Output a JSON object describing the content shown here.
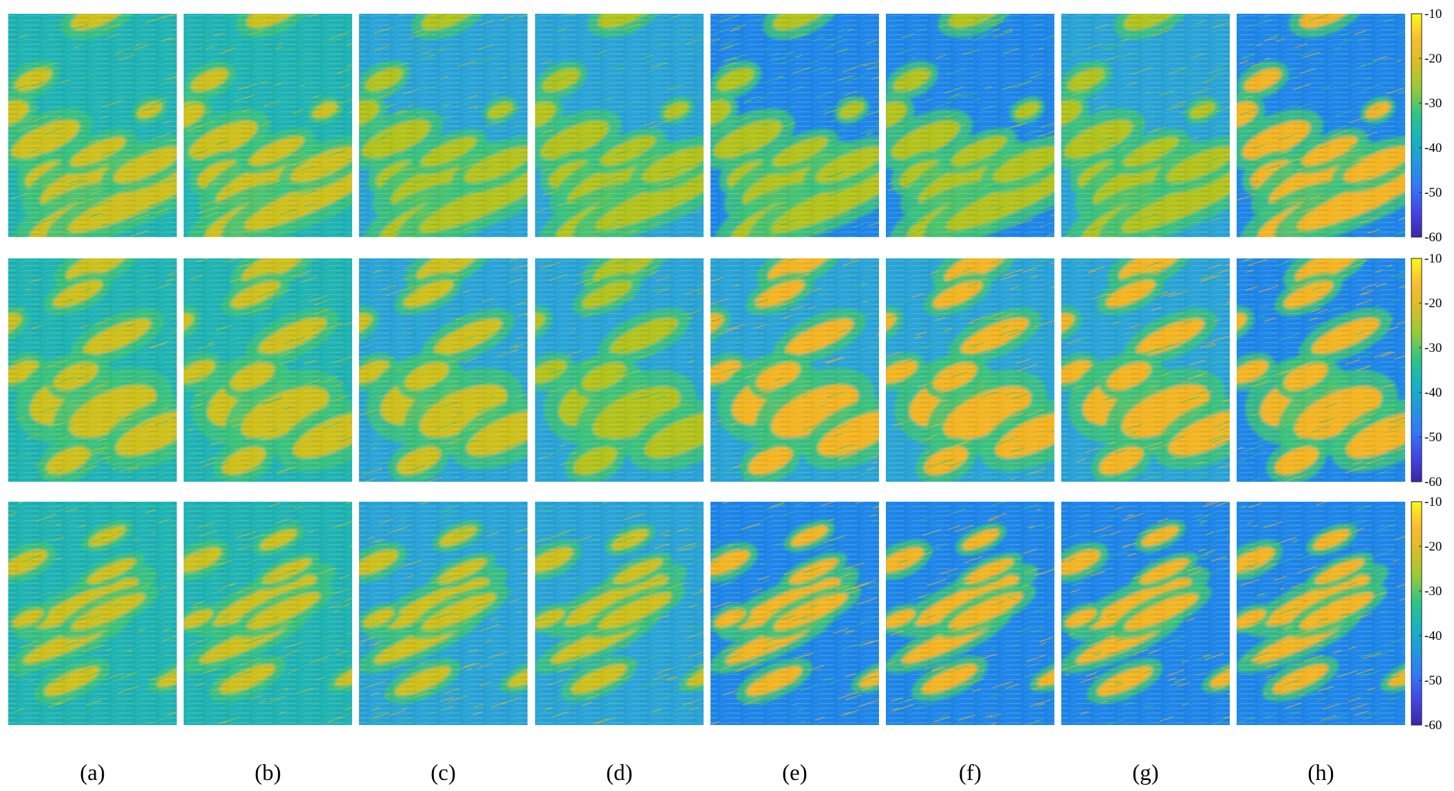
{
  "chart_data": {
    "type": "heatmap",
    "panel_labels": [
      "(a)",
      "(b)",
      "(c)",
      "(d)",
      "(e)",
      "(f)",
      "(g)",
      "(h)"
    ],
    "rows": 3,
    "columns": 8,
    "colorbar": {
      "range": [
        -60,
        -10
      ],
      "ticks": [
        -10,
        -20,
        -30,
        -40,
        -50,
        -60
      ],
      "tick_labels": [
        "-10",
        "-20",
        "-30",
        "-40",
        "-50",
        "-60"
      ],
      "colormap": [
        "#3e26a8",
        "#4145e6",
        "#3377f9",
        "#1f99dd",
        "#12b6c0",
        "#31c582",
        "#96cb36",
        "#d7be26",
        "#fbbd2e",
        "#f9fb14"
      ]
    },
    "colors": {
      "background_teal": "#20b3b3",
      "light_blue": "#2aa3d6",
      "deep_blue": "#1f86e8",
      "green": "#3cc27a",
      "olive": "#b2c21f",
      "yellow": "#cdbf1c",
      "orange": "#f2b424"
    }
  }
}
